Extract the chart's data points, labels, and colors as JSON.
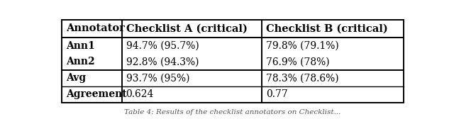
{
  "col_headers": [
    "Annotator",
    "Checklist A (critical)",
    "Checklist B (critical)"
  ],
  "rows": [
    [
      "Ann1",
      "94.7% (95.7%)",
      "79.8% (79.1%)"
    ],
    [
      "Ann2",
      "92.8% (94.3%)",
      "76.9% (78%)"
    ],
    [
      "Avg",
      "93.7% (95%)",
      "78.3% (78.6%)"
    ],
    [
      "Agreement",
      "0.624",
      "0.77"
    ]
  ],
  "caption": "Table 4: Results of the checklist annotators on Checklist...",
  "figsize": [
    6.4,
    1.85
  ],
  "dpi": 100,
  "background_color": "#ffffff",
  "line_color": "#000000",
  "header_fontsize": 10.5,
  "cell_fontsize": 10.0,
  "caption_fontsize": 7.5
}
